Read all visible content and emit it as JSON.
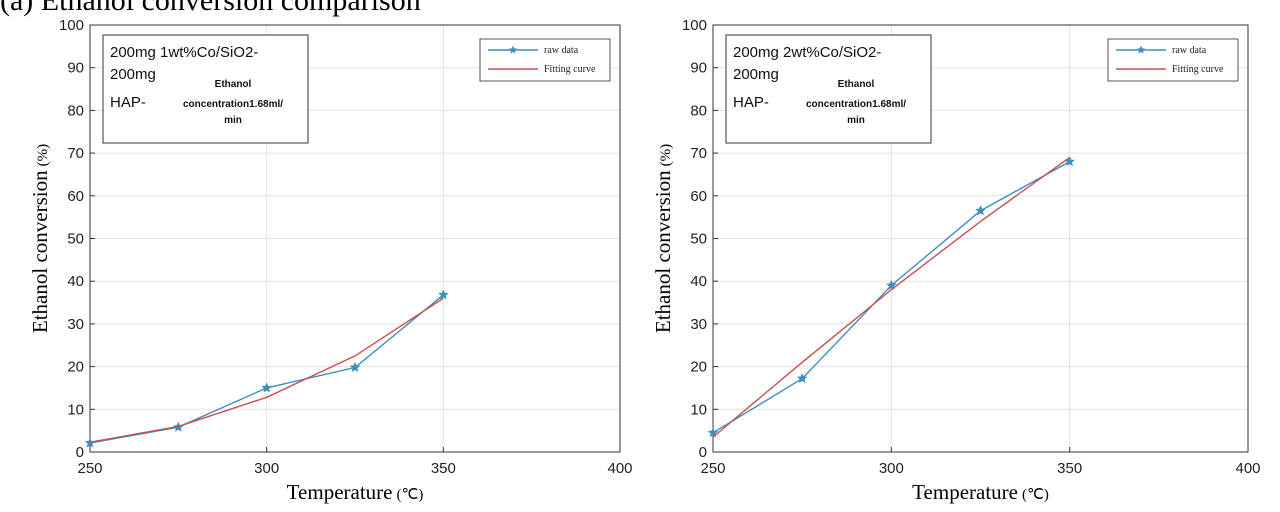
{
  "header": {
    "fragment": "(a) Ethanol conversion comparison"
  },
  "chart_data": [
    {
      "type": "line",
      "xlabel": "Temperature",
      "xunit": "(℃)",
      "ylabel": "Ethanol conversion",
      "yunit": "(%)",
      "xlim": [
        250,
        400
      ],
      "ylim": [
        0,
        100
      ],
      "x_ticks": [
        250,
        300,
        350,
        400
      ],
      "y_ticks": [
        0,
        10,
        20,
        30,
        40,
        50,
        60,
        70,
        80,
        90,
        100
      ],
      "grid": true,
      "legend_position": "top-right",
      "info_box": {
        "line1": "200mg 1wt%Co/SiO2-",
        "line2": "200mg",
        "line3": "HAP-",
        "small1": "Ethanol",
        "small2": "concentration1.68ml/",
        "small3": "min"
      },
      "series": [
        {
          "name": "raw data",
          "x": [
            250,
            275,
            300,
            325,
            350
          ],
          "y": [
            2.1,
            5.8,
            15.0,
            19.8,
            36.8
          ],
          "color": "#3c8fbf",
          "marker": "star"
        },
        {
          "name": "Fitting curve",
          "x": [
            250,
            275,
            300,
            325,
            350
          ],
          "y": [
            2.3,
            6.0,
            12.8,
            22.5,
            36.0
          ],
          "color": "#c8504a"
        }
      ]
    },
    {
      "type": "line",
      "xlabel": "Temperature",
      "xunit": "(℃)",
      "ylabel": "Ethanol conversion",
      "yunit": "(%)",
      "xlim": [
        250,
        400
      ],
      "ylim": [
        0,
        100
      ],
      "x_ticks": [
        250,
        300,
        350,
        400
      ],
      "y_ticks": [
        0,
        10,
        20,
        30,
        40,
        50,
        60,
        70,
        80,
        90,
        100
      ],
      "grid": true,
      "legend_position": "top-right",
      "info_box": {
        "line1": "200mg 2wt%Co/SiO2-",
        "line2": "200mg",
        "line3": "HAP-",
        "small1": "Ethanol",
        "small2": "concentration1.68ml/",
        "small3": "min"
      },
      "series": [
        {
          "name": "raw data",
          "x": [
            250,
            275,
            300,
            325,
            350
          ],
          "y": [
            4.5,
            17.2,
            39.0,
            56.5,
            68.0
          ],
          "color": "#3c8fbf",
          "marker": "star"
        },
        {
          "name": "Fitting curve",
          "x": [
            250,
            275,
            300,
            325,
            350
          ],
          "y": [
            3.5,
            21.0,
            38.0,
            54.0,
            69.0
          ],
          "color": "#c8504a"
        }
      ]
    }
  ]
}
